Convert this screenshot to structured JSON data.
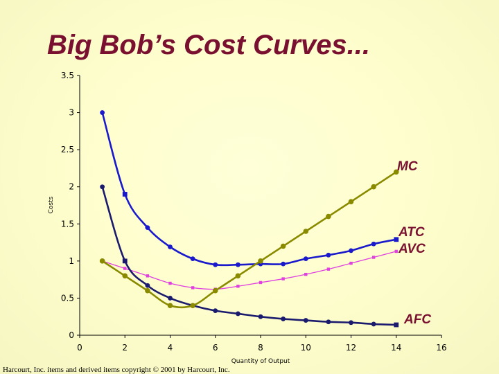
{
  "chart_data": {
    "type": "line",
    "title": "Big Bob’s Cost Curves...",
    "xlabel": "Quantity of Output",
    "ylabel": "Costs",
    "xlim": [
      0,
      16
    ],
    "ylim": [
      0,
      3.5
    ],
    "x_ticks": [
      "0",
      "2",
      "4",
      "6",
      "8",
      "10",
      "12",
      "14",
      "16"
    ],
    "y_ticks": [
      "0",
      "0.5",
      "1",
      "1.5",
      "2",
      "2.5",
      "3",
      "3.5"
    ],
    "grid": false,
    "series": [
      {
        "name": "MC",
        "color": "#8a8a00",
        "x": [
          1,
          2,
          3,
          4,
          5,
          6,
          7,
          8,
          9,
          10,
          11,
          12,
          13,
          14
        ],
        "values": [
          1.0,
          0.8,
          0.6,
          0.4,
          0.4,
          0.6,
          0.8,
          1.0,
          1.2,
          1.4,
          1.6,
          1.8,
          2.0,
          2.2
        ]
      },
      {
        "name": "ATC",
        "color": "#1a1acc",
        "x": [
          1,
          2,
          3,
          4,
          5,
          6,
          7,
          8,
          9,
          10,
          11,
          12,
          13,
          14
        ],
        "values": [
          3.0,
          1.9,
          1.45,
          1.19,
          1.03,
          0.95,
          0.95,
          0.96,
          0.96,
          1.03,
          1.08,
          1.14,
          1.23,
          1.29
        ]
      },
      {
        "name": "AVC",
        "color": "#e040e0",
        "x": [
          1,
          2,
          3,
          4,
          5,
          6,
          7,
          8,
          9,
          10,
          11,
          12,
          13,
          14
        ],
        "values": [
          1.0,
          0.9,
          0.8,
          0.7,
          0.64,
          0.62,
          0.66,
          0.71,
          0.76,
          0.82,
          0.89,
          0.97,
          1.05,
          1.13
        ]
      },
      {
        "name": "AFC",
        "color": "#1a1a6e",
        "x": [
          1,
          2,
          3,
          4,
          5,
          6,
          7,
          8,
          9,
          10,
          11,
          12,
          13,
          14
        ],
        "values": [
          2.0,
          1.0,
          0.67,
          0.5,
          0.4,
          0.33,
          0.29,
          0.25,
          0.22,
          0.2,
          0.18,
          0.17,
          0.15,
          0.14
        ]
      }
    ]
  },
  "copyright": "Harcourt, Inc. items and derived items copyright © 2001 by Harcourt, Inc."
}
